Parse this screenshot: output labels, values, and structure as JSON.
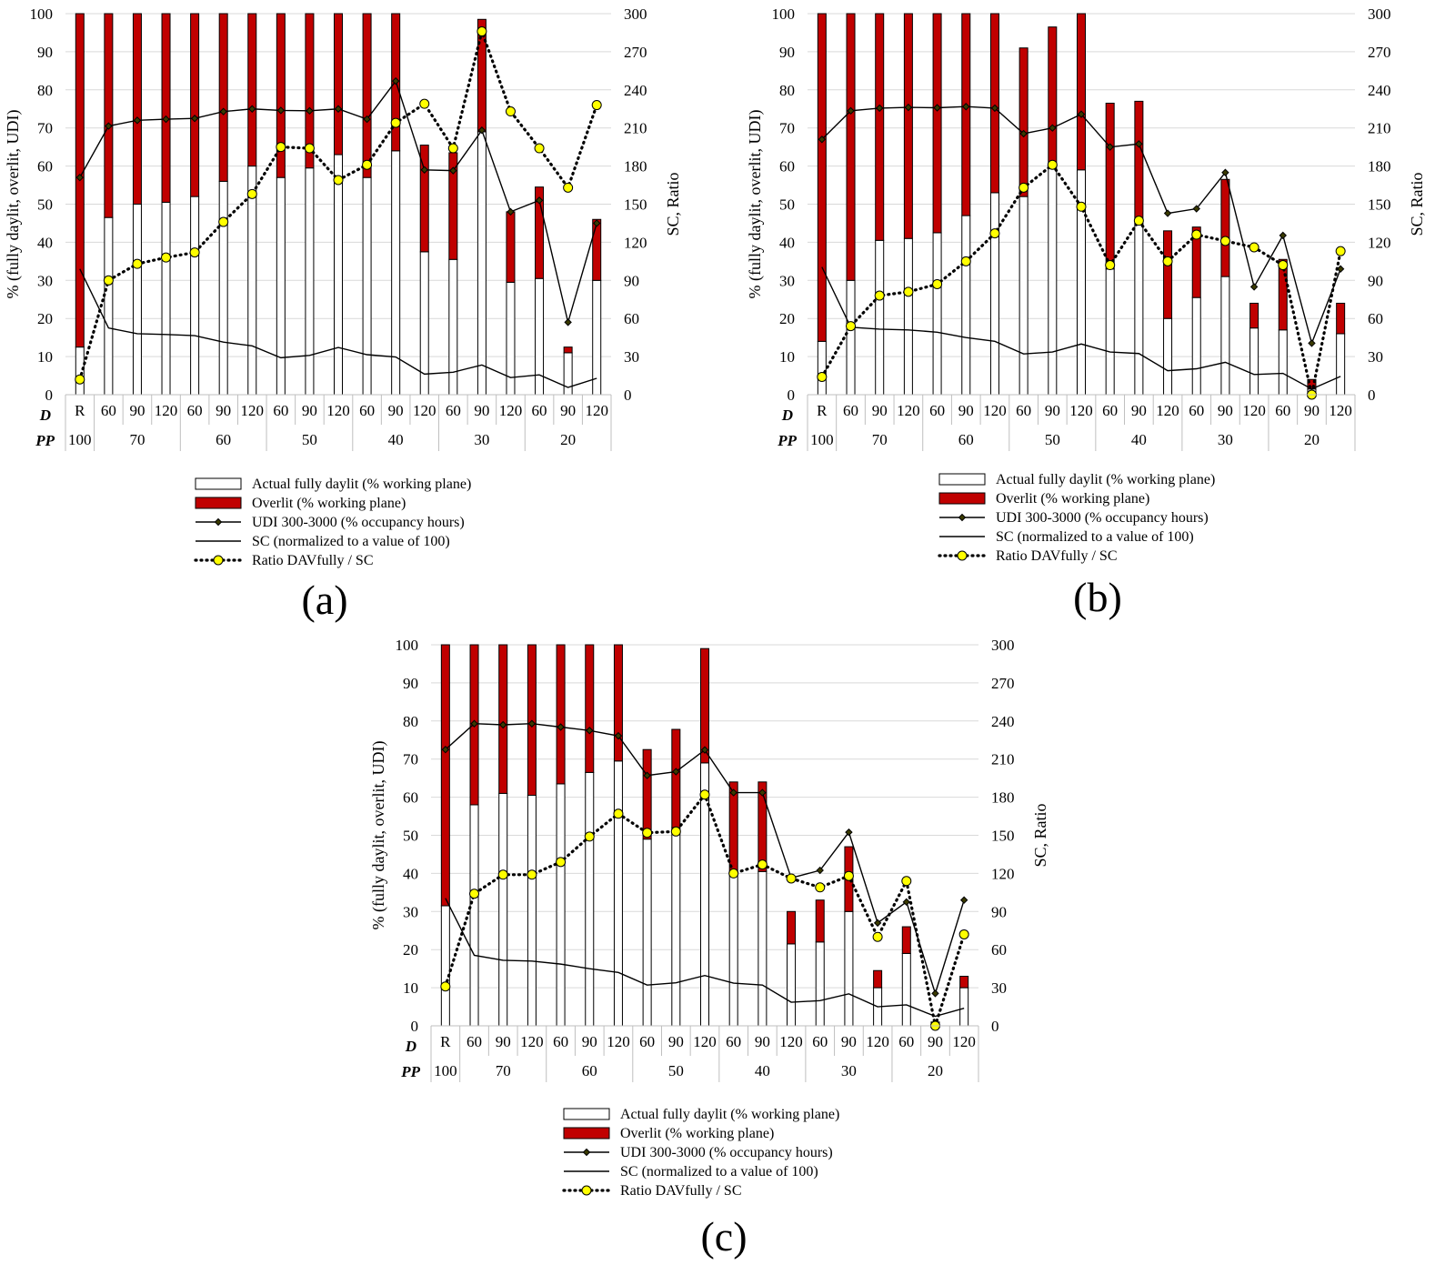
{
  "chart_data": [
    {
      "type": "bar",
      "panel_label": "(a)",
      "categories": [
        "R",
        "60",
        "90",
        "120",
        "60",
        "90",
        "120",
        "60",
        "90",
        "120",
        "60",
        "90",
        "120",
        "60",
        "90",
        "120",
        "60",
        "90",
        "120"
      ],
      "pp_groups": [
        {
          "label": "100",
          "span": 1
        },
        {
          "label": "70",
          "span": 3
        },
        {
          "label": "60",
          "span": 3
        },
        {
          "label": "50",
          "span": 3
        },
        {
          "label": "40",
          "span": 3
        },
        {
          "label": "30",
          "span": 3
        },
        {
          "label": "20",
          "span": 3
        }
      ],
      "row_labels": {
        "d": "D",
        "pp": "PP"
      },
      "ylabel": "% (fully daylit, overlit, UDI)",
      "y2label": "SC, Ratio",
      "ylim": [
        0,
        100
      ],
      "y2lim": [
        0,
        300
      ],
      "yticks": [
        0,
        10,
        20,
        30,
        40,
        50,
        60,
        70,
        80,
        90,
        100
      ],
      "y2ticks": [
        0,
        30,
        60,
        90,
        120,
        150,
        180,
        210,
        240,
        270,
        300
      ],
      "series": [
        {
          "name": "Actual fully daylit (% working plane)",
          "kind": "bar",
          "axis": "left",
          "values": [
            12.5,
            46.5,
            50,
            50.5,
            52,
            56,
            60,
            57,
            59.5,
            63,
            57,
            64,
            37.5,
            35.5,
            69,
            29.5,
            30.5,
            11,
            30
          ]
        },
        {
          "name": "Overlit (% working plane)",
          "kind": "bar",
          "axis": "left",
          "values": [
            87.5,
            53.5,
            50,
            49.5,
            48,
            44,
            40,
            43,
            40.5,
            37,
            43,
            36,
            28,
            28,
            29.5,
            18.5,
            24,
            1.5,
            16
          ]
        },
        {
          "name": "UDI 300-3000 (% occupancy hours)",
          "kind": "line-diamond",
          "axis": "left",
          "values": [
            57,
            70.5,
            72,
            72.3,
            72.5,
            74.3,
            75,
            74.6,
            74.5,
            75,
            72.3,
            82.3,
            59,
            58.8,
            69.4,
            48,
            51,
            19,
            45
          ]
        },
        {
          "name": "SC (normalized to a value of 100)",
          "kind": "line",
          "axis": "left",
          "values": [
            33,
            17.5,
            16,
            15.8,
            15.5,
            13.8,
            12.8,
            9.7,
            10.3,
            12.4,
            10.5,
            9.9,
            5.4,
            5.9,
            7.8,
            4.5,
            5.2,
            1.9,
            4.3
          ]
        },
        {
          "name": "Ratio DAVfully / SC",
          "kind": "dotted-circle",
          "axis": "right",
          "values": [
            12,
            90,
            103,
            108,
            112,
            136,
            158,
            195,
            194,
            169,
            181,
            214,
            229,
            194,
            286,
            223,
            194,
            163,
            228
          ]
        }
      ]
    },
    {
      "type": "bar",
      "panel_label": "(b)",
      "categories": [
        "R",
        "60",
        "90",
        "120",
        "60",
        "90",
        "120",
        "60",
        "90",
        "120",
        "60",
        "90",
        "120",
        "60",
        "90",
        "120",
        "60",
        "90",
        "120"
      ],
      "pp_groups": [
        {
          "label": "100",
          "span": 1
        },
        {
          "label": "70",
          "span": 3
        },
        {
          "label": "60",
          "span": 3
        },
        {
          "label": "50",
          "span": 3
        },
        {
          "label": "40",
          "span": 3
        },
        {
          "label": "30",
          "span": 3
        },
        {
          "label": "20",
          "span": 3
        }
      ],
      "row_labels": {
        "d": "D",
        "pp": "PP"
      },
      "ylabel": "% (fully daylit, overlit, UDI)",
      "y2label": "SC, Ratio",
      "ylim": [
        0,
        100
      ],
      "y2lim": [
        0,
        300
      ],
      "yticks": [
        0,
        10,
        20,
        30,
        40,
        50,
        60,
        70,
        80,
        90,
        100
      ],
      "y2ticks": [
        0,
        30,
        60,
        90,
        120,
        150,
        180,
        210,
        240,
        270,
        300
      ],
      "series": [
        {
          "name": "Actual fully daylit (% working plane)",
          "kind": "bar",
          "axis": "left",
          "values": [
            14,
            30,
            40.5,
            41,
            42.5,
            47,
            53,
            52,
            60,
            59,
            33,
            45,
            20,
            25.5,
            31,
            17.5,
            17,
            1.5,
            16
          ]
        },
        {
          "name": "Overlit (% working plane)",
          "kind": "bar",
          "axis": "left",
          "values": [
            86,
            70,
            59.5,
            59,
            57.5,
            53,
            47,
            39,
            36.5,
            41,
            43.5,
            32,
            23,
            18.5,
            25.5,
            6.5,
            18.5,
            2.5,
            8
          ]
        },
        {
          "name": "UDI 300-3000 (% occupancy hours)",
          "kind": "line-diamond",
          "axis": "left",
          "values": [
            67,
            74.5,
            75.2,
            75.4,
            75.3,
            75.6,
            75.2,
            68.5,
            70,
            73.6,
            65,
            65.8,
            47.6,
            48.8,
            58.3,
            28.3,
            41.8,
            13.5,
            33
          ]
        },
        {
          "name": "SC (normalized to a value of 100)",
          "kind": "line",
          "axis": "left",
          "values": [
            33.5,
            17.7,
            17.2,
            17,
            16.4,
            15,
            14,
            10.7,
            11.2,
            13.3,
            11.2,
            10.8,
            6.3,
            6.8,
            8.5,
            5.3,
            5.6,
            1.5,
            4.8
          ]
        },
        {
          "name": "Ratio DAVfully / SC",
          "kind": "dotted-circle",
          "axis": "right",
          "values": [
            14,
            54,
            78,
            81,
            87,
            105,
            127,
            163,
            181,
            148,
            102,
            137,
            105,
            126,
            121,
            116,
            102,
            0,
            113
          ]
        }
      ]
    },
    {
      "type": "bar",
      "panel_label": "(c)",
      "categories": [
        "R",
        "60",
        "90",
        "120",
        "60",
        "90",
        "120",
        "60",
        "90",
        "120",
        "60",
        "90",
        "120",
        "60",
        "90",
        "120",
        "60",
        "90",
        "120"
      ],
      "pp_groups": [
        {
          "label": "100",
          "span": 1
        },
        {
          "label": "70",
          "span": 3
        },
        {
          "label": "60",
          "span": 3
        },
        {
          "label": "50",
          "span": 3
        },
        {
          "label": "40",
          "span": 3
        },
        {
          "label": "30",
          "span": 3
        },
        {
          "label": "20",
          "span": 3
        }
      ],
      "row_labels": {
        "d": "D",
        "pp": "PP"
      },
      "ylabel": "% (fully daylit, overlit, UDI)",
      "y2label": "SC, Ratio",
      "ylim": [
        0,
        100
      ],
      "y2lim": [
        0,
        300
      ],
      "yticks": [
        0,
        10,
        20,
        30,
        40,
        50,
        60,
        70,
        80,
        90,
        100
      ],
      "y2ticks": [
        0,
        30,
        60,
        90,
        120,
        150,
        180,
        210,
        240,
        270,
        300
      ],
      "series": [
        {
          "name": "Actual fully daylit (% working plane)",
          "kind": "bar",
          "axis": "left",
          "values": [
            31.5,
            58,
            61,
            60.5,
            63.5,
            66.5,
            69.5,
            49,
            52,
            69,
            40,
            40.5,
            21.5,
            22,
            30,
            10,
            19,
            1,
            10
          ]
        },
        {
          "name": "Overlit (% working plane)",
          "kind": "bar",
          "axis": "left",
          "values": [
            68.5,
            42,
            39,
            39.5,
            36.5,
            33.5,
            30.5,
            23.5,
            25.8,
            30,
            24,
            23.5,
            8.5,
            11,
            17,
            4.5,
            7,
            0,
            3
          ]
        },
        {
          "name": "UDI 300-3000 (% occupancy hours)",
          "kind": "line-diamond",
          "axis": "left",
          "values": [
            72.5,
            79.3,
            79,
            79.3,
            78.4,
            77.5,
            76.1,
            65.7,
            66.7,
            72.4,
            61.2,
            61.2,
            38.8,
            40.8,
            50.8,
            27,
            32.5,
            8.5,
            33
          ]
        },
        {
          "name": "SC (normalized to a value of 100)",
          "kind": "line",
          "axis": "left",
          "values": [
            33.5,
            18.5,
            17.2,
            17,
            16.2,
            15,
            14,
            10.7,
            11.3,
            13.2,
            11.2,
            10.7,
            6.2,
            6.6,
            8.4,
            5,
            5.5,
            2.5,
            4.6
          ]
        },
        {
          "name": "Ratio DAVfully / SC",
          "kind": "dotted-circle",
          "axis": "right",
          "values": [
            31,
            104,
            119,
            119,
            129,
            149,
            167,
            152,
            153,
            182,
            120,
            127,
            116,
            109,
            118,
            70,
            114,
            0,
            72
          ]
        }
      ]
    }
  ],
  "colors": {
    "overlit": "#c00000",
    "daylit": "#ffffff",
    "marker_fill": "#ffff00",
    "line": "#000000"
  }
}
